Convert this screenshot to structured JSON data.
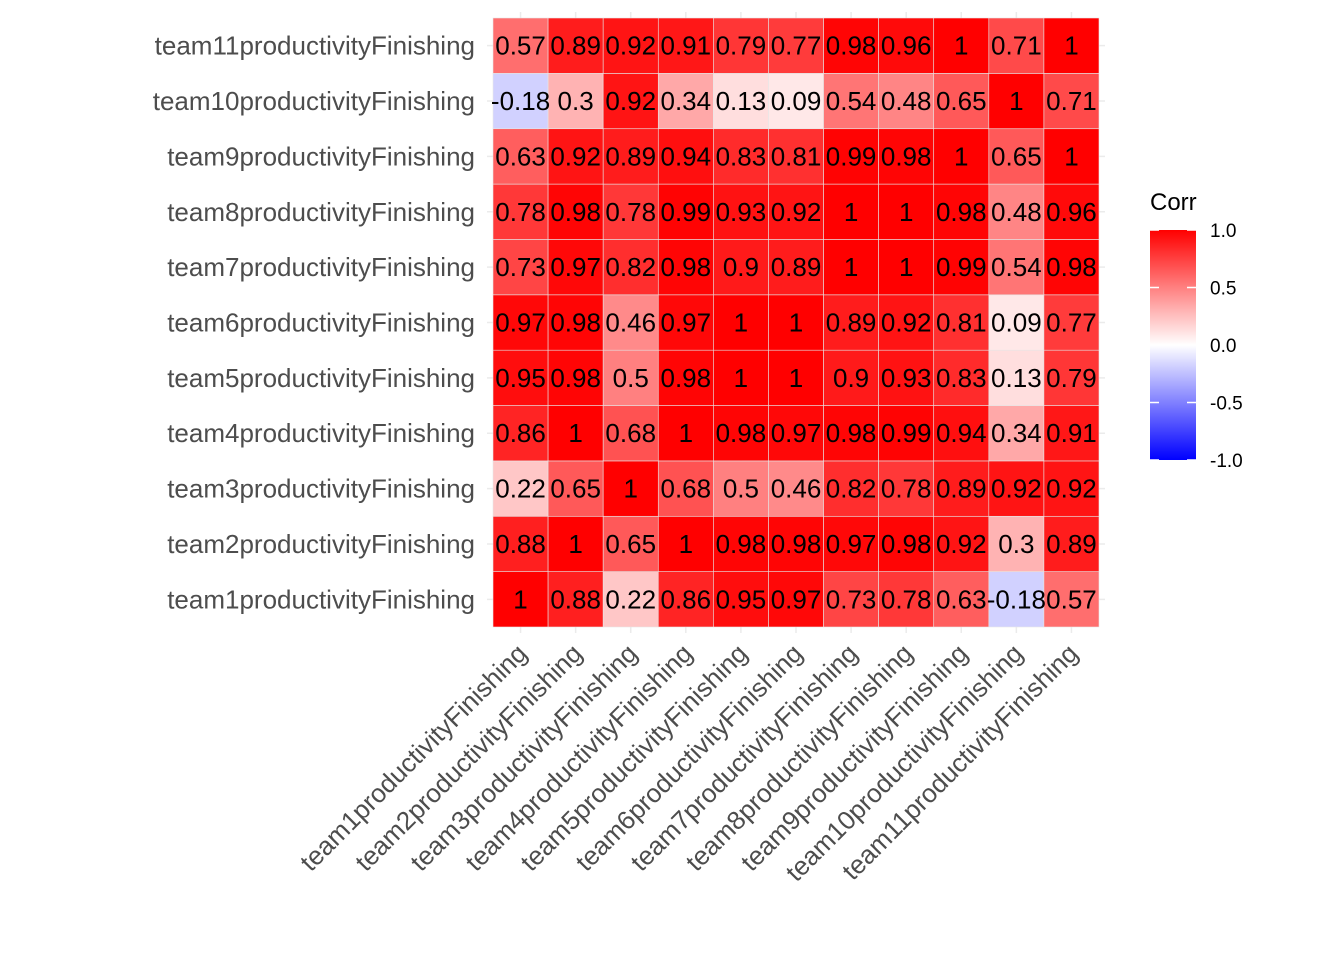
{
  "chart_data": {
    "type": "heatmap",
    "variables": [
      "team1productivityFinishing",
      "team2productivityFinishing",
      "team3productivityFinishing",
      "team4productivityFinishing",
      "team5productivityFinishing",
      "team6productivityFinishing",
      "team7productivityFinishing",
      "team8productivityFinishing",
      "team9productivityFinishing",
      "team10productivityFinishing",
      "team11productivityFinishing"
    ],
    "matrix": [
      [
        1,
        0.88,
        0.22,
        0.86,
        0.95,
        0.97,
        0.73,
        0.78,
        0.63,
        -0.18,
        0.57
      ],
      [
        0.88,
        1,
        0.65,
        1,
        0.98,
        0.98,
        0.97,
        0.98,
        0.92,
        0.3,
        0.89
      ],
      [
        0.22,
        0.65,
        1,
        0.68,
        0.5,
        0.46,
        0.82,
        0.78,
        0.89,
        0.92,
        0.92
      ],
      [
        0.86,
        1,
        0.68,
        1,
        0.98,
        0.97,
        0.98,
        0.99,
        0.94,
        0.34,
        0.91
      ],
      [
        0.95,
        0.98,
        0.5,
        0.98,
        1,
        1,
        0.9,
        0.93,
        0.83,
        0.13,
        0.79
      ],
      [
        0.97,
        0.98,
        0.46,
        0.97,
        1,
        1,
        0.89,
        0.92,
        0.81,
        0.09,
        0.77
      ],
      [
        0.73,
        0.97,
        0.82,
        0.98,
        0.9,
        0.89,
        1,
        1,
        0.99,
        0.54,
        0.98
      ],
      [
        0.78,
        0.98,
        0.78,
        0.99,
        0.93,
        0.92,
        1,
        1,
        0.98,
        0.48,
        0.96
      ],
      [
        0.63,
        0.92,
        0.89,
        0.94,
        0.83,
        0.81,
        0.99,
        0.98,
        1,
        0.65,
        1
      ],
      [
        -0.18,
        0.3,
        0.92,
        0.34,
        0.13,
        0.09,
        0.54,
        0.48,
        0.65,
        1,
        0.71
      ],
      [
        0.57,
        0.89,
        0.92,
        0.91,
        0.79,
        0.77,
        0.98,
        0.96,
        1,
        0.71,
        1
      ]
    ],
    "legend": {
      "title": "Corr",
      "ticks": [
        "1.0",
        "0.5",
        "0.0",
        "-0.5",
        "-1.0"
      ],
      "tick_values": [
        1.0,
        0.5,
        0.0,
        -0.5,
        -1.0
      ],
      "range": [
        -1,
        1
      ]
    },
    "colors": {
      "low": "#0000FF",
      "mid": "#FFFFFF",
      "high": "#FF0000"
    }
  }
}
